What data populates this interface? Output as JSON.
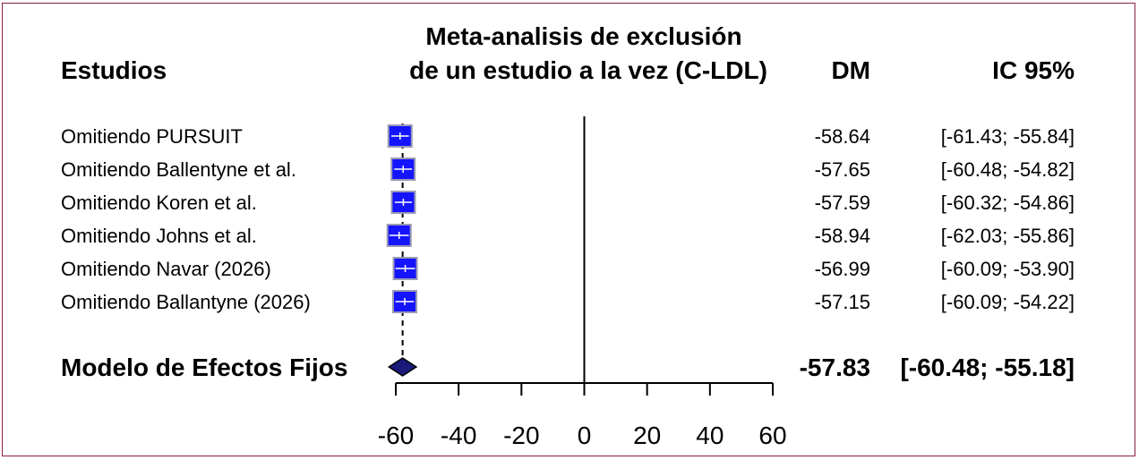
{
  "chart_data": {
    "type": "forest",
    "title_line1": "Meta-analisis de exclusión",
    "title_line2": "de un estudio a la vez (C-LDL)",
    "col_studies": "Estudios",
    "col_effect": "DM",
    "col_ci": "IC 95%",
    "studies": [
      {
        "label": "Omitiendo  PURSUIT",
        "dm": -58.64,
        "lo": -61.43,
        "hi": -55.84,
        "dm_text": "-58.64",
        "ci_text": "[-61.43; -55.84]"
      },
      {
        "label": "Omitiendo  Ballentyne et al.",
        "dm": -57.65,
        "lo": -60.48,
        "hi": -54.82,
        "dm_text": "-57.65",
        "ci_text": "[-60.48; -54.82]"
      },
      {
        "label": "Omitiendo  Koren et al.",
        "dm": -57.59,
        "lo": -60.32,
        "hi": -54.86,
        "dm_text": "-57.59",
        "ci_text": "[-60.32; -54.86]"
      },
      {
        "label": "Omitiendo  Johns et al.",
        "dm": -58.94,
        "lo": -62.03,
        "hi": -55.86,
        "dm_text": "-58.94",
        "ci_text": "[-62.03; -55.86]"
      },
      {
        "label": "Omitiendo  Navar (2026)",
        "dm": -56.99,
        "lo": -60.09,
        "hi": -53.9,
        "dm_text": "-56.99",
        "ci_text": "[-60.09; -53.90]"
      },
      {
        "label": "Omitiendo  Ballantyne (2026)",
        "dm": -57.15,
        "lo": -60.09,
        "hi": -54.22,
        "dm_text": "-57.15",
        "ci_text": "[-60.09; -54.22]"
      }
    ],
    "summary": {
      "label": "Modelo de Efectos Fijos",
      "dm": -57.83,
      "lo": -60.48,
      "hi": -55.18,
      "dm_text": "-57.83",
      "ci_text": "[-60.48; -55.18]"
    },
    "xlim": [
      -60,
      60
    ],
    "xticks": [
      -60,
      -40,
      -20,
      0,
      20,
      40,
      60
    ],
    "reference_line": 0,
    "colors": {
      "box": "#1414ff",
      "box_border": "#9a9ab4",
      "diamond": "#1a1a7a",
      "frame": "#8a2040"
    }
  }
}
